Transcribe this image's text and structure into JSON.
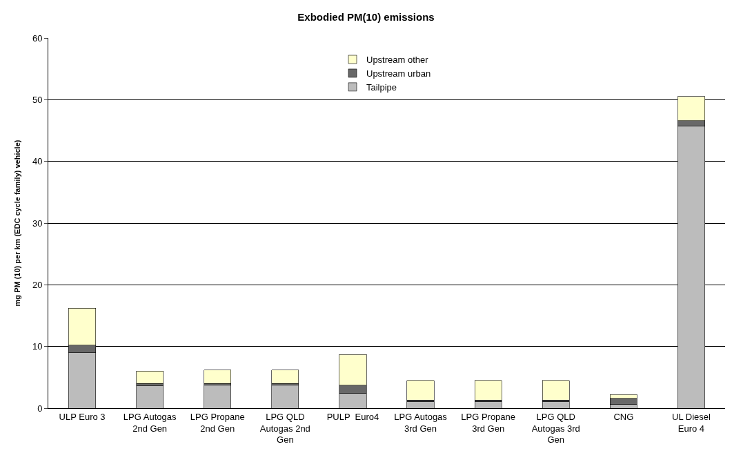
{
  "chart_data": {
    "type": "bar",
    "title": "Exbodied PM(10) emissions",
    "ylabel": "mg PM (10) per km (EDC cycle family) vehicle)",
    "categories": [
      "ULP Euro 3",
      "LPG Autogas 2nd Gen",
      "LPG Propane 2nd Gen",
      "LPG QLD Autogas 2nd Gen",
      "PULP  Euro4",
      "LPG Autogas 3rd Gen",
      "LPG Propane 3rd Gen",
      "LPG QLD Autogas 3rd Gen",
      "CNG",
      "UL Diesel Euro 4"
    ],
    "stacked": true,
    "series": [
      {
        "name": "Tailpipe",
        "color": "#bcbcbc",
        "values": [
          9.0,
          3.6,
          3.7,
          3.7,
          2.4,
          1.1,
          1.1,
          1.1,
          0.6,
          45.7
        ]
      },
      {
        "name": "Upstream urban",
        "color": "#686868",
        "values": [
          1.2,
          0.4,
          0.3,
          0.3,
          1.3,
          0.2,
          0.2,
          0.2,
          1.0,
          0.9
        ]
      },
      {
        "name": "Upstream other",
        "color": "#ffffcc",
        "values": [
          6.0,
          2.0,
          2.2,
          2.2,
          5.0,
          3.2,
          3.2,
          3.2,
          0.6,
          3.9
        ]
      }
    ],
    "ylim": [
      0,
      60
    ],
    "yticks": [
      0,
      10,
      20,
      30,
      40,
      50,
      60
    ],
    "grid": "y",
    "legend": "top"
  }
}
